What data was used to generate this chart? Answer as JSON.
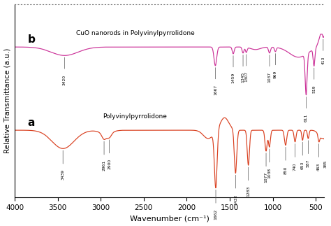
{
  "xlabel": "Wavenumber (cm⁻¹)",
  "ylabel": "Relative Transmittance (a.u.)",
  "color_a": "#d94020",
  "color_b": "#cc3399",
  "label_a": "Polyvinylpyrrolidone",
  "label_b": "CuO nanorods in Polyvinylpyrrolidone",
  "letter_a": "a",
  "letter_b": "b",
  "background_color": "#ffffff",
  "peaks_a_annot": [
    [
      3439,
      "3439"
    ],
    [
      2961,
      "2961"
    ],
    [
      2900,
      "2900"
    ],
    [
      1662,
      "1662"
    ],
    [
      1432,
      "1432"
    ],
    [
      1283,
      "1283"
    ],
    [
      1077,
      "1077"
    ],
    [
      1038,
      "1038"
    ],
    [
      850,
      "850"
    ],
    [
      740,
      "740"
    ],
    [
      653,
      "653"
    ],
    [
      587,
      "587"
    ],
    [
      463,
      "463"
    ],
    [
      385,
      "385"
    ]
  ],
  "peaks_b_annot": [
    [
      3420,
      "3420"
    ],
    [
      1667,
      "1667"
    ],
    [
      1459,
      "1459"
    ],
    [
      1345,
      "1345"
    ],
    [
      1307,
      "1307"
    ],
    [
      1037,
      "1037"
    ],
    [
      969,
      "969"
    ],
    [
      611,
      "611"
    ],
    [
      519,
      "519"
    ],
    [
      413,
      "413"
    ]
  ]
}
